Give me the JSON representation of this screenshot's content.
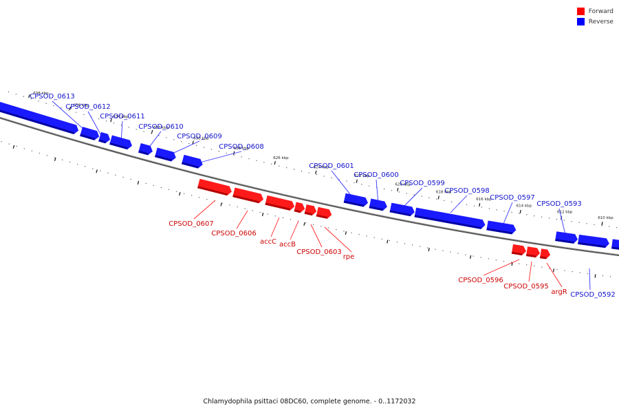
{
  "legend": {
    "items": [
      {
        "label": "Forward",
        "color": "#ff0000"
      },
      {
        "label": "Reverse",
        "color": "#0000ff"
      }
    ]
  },
  "caption": "Chlamydophila psittaci 08DC60, complete genome. - 0..1172032",
  "scale_labels": [
    "638 kbp",
    "636 kbp",
    "634 kbp",
    "632 kbp",
    "630 kbp",
    "628 kbp",
    "626 kbp",
    "624 kbp",
    "622 kbp",
    "620 kbp",
    "618 kbp",
    "616 kbp",
    "614 kbp",
    "612 kbp",
    "610 kbp"
  ],
  "genes": [
    {
      "label": "CPSOD_0613",
      "strand": "reverse"
    },
    {
      "label": "CPSOD_0612",
      "strand": "reverse"
    },
    {
      "label": "CPSOD_0611",
      "strand": "reverse"
    },
    {
      "label": "CPSOD_0610",
      "strand": "reverse"
    },
    {
      "label": "CPSOD_0609",
      "strand": "reverse"
    },
    {
      "label": "CPSOD_0608",
      "strand": "reverse"
    },
    {
      "label": "CPSOD_0601",
      "strand": "reverse"
    },
    {
      "label": "CPSOD_0600",
      "strand": "reverse"
    },
    {
      "label": "CPSOD_0599",
      "strand": "reverse"
    },
    {
      "label": "CPSOD_0598",
      "strand": "reverse"
    },
    {
      "label": "CPSOD_0597",
      "strand": "reverse"
    },
    {
      "label": "CPSOD_0593",
      "strand": "reverse"
    },
    {
      "label": "CPSOD_0592",
      "strand": "reverse"
    },
    {
      "label": "CPSOD_0607",
      "strand": "forward"
    },
    {
      "label": "CPSOD_0606",
      "strand": "forward"
    },
    {
      "label": "accC",
      "strand": "forward"
    },
    {
      "label": "accB",
      "strand": "forward"
    },
    {
      "label": "CPSOD_0603",
      "strand": "forward"
    },
    {
      "label": "rpe",
      "strand": "forward"
    },
    {
      "label": "CPSOD_0596",
      "strand": "forward"
    },
    {
      "label": "CPSOD_0595",
      "strand": "forward"
    },
    {
      "label": "argR",
      "strand": "forward"
    }
  ]
}
